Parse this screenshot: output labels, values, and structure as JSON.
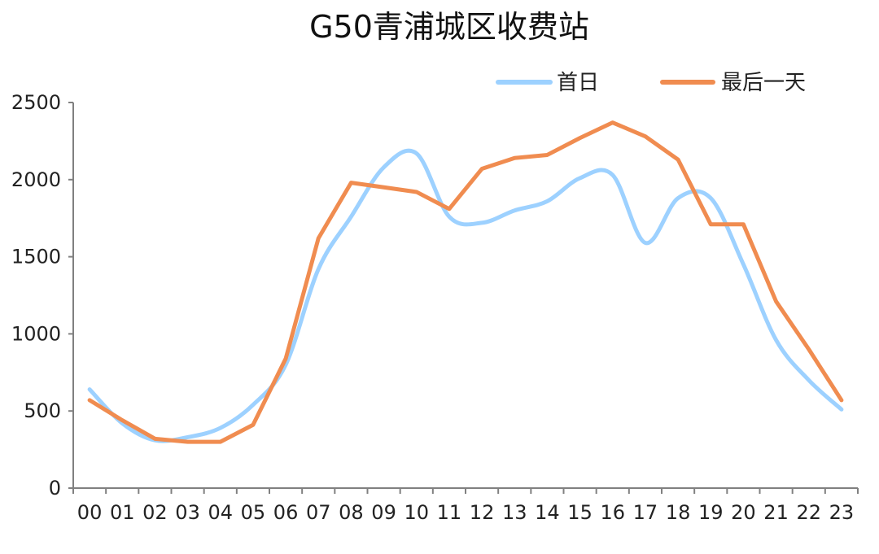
{
  "chart_data": {
    "type": "line",
    "title": "G50青浦城区收费站",
    "xlabel": "",
    "ylabel": "",
    "categories": [
      "00",
      "01",
      "02",
      "03",
      "04",
      "05",
      "06",
      "07",
      "08",
      "09",
      "10",
      "11",
      "12",
      "13",
      "14",
      "15",
      "16",
      "17",
      "18",
      "19",
      "20",
      "21",
      "22",
      "23"
    ],
    "ylim": [
      0,
      2500
    ],
    "yticks": [
      0,
      500,
      1000,
      1500,
      2000,
      2500
    ],
    "grid": false,
    "legend_position": "top-right",
    "series": [
      {
        "name": "首日",
        "color": "#9dd1ff",
        "smooth": true,
        "values": [
          640,
          420,
          310,
          330,
          390,
          540,
          800,
          1420,
          1760,
          2080,
          2170,
          1760,
          1720,
          1800,
          1860,
          2010,
          2030,
          1590,
          1880,
          1880,
          1450,
          960,
          700,
          510
        ]
      },
      {
        "name": "最后一天",
        "color": "#f08c50",
        "smooth": false,
        "values": [
          570,
          440,
          320,
          300,
          300,
          410,
          840,
          1620,
          1980,
          1950,
          1920,
          1810,
          2070,
          2140,
          2160,
          2270,
          2370,
          2280,
          2130,
          1710,
          1710,
          1210,
          900,
          570
        ]
      }
    ]
  }
}
